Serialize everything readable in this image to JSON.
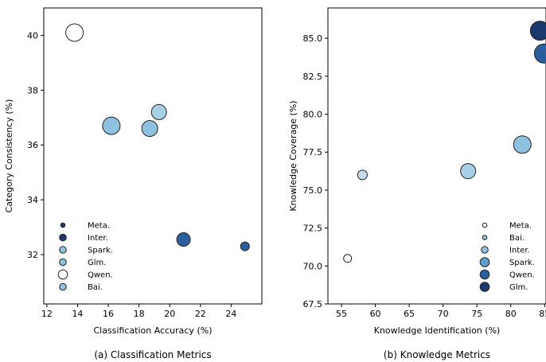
{
  "colors": {
    "dark": "#1a3a6e",
    "mid": "#2c5f9e",
    "light": "#8ec0e0",
    "pale": "#c4dcec",
    "white": "#ffffff"
  },
  "chart_data": [
    {
      "type": "scatter",
      "caption": "(a) Classification Metrics",
      "xlabel": "Classification Accuracy (%)",
      "ylabel": "Category Consistency (%)",
      "xlim": [
        11.8,
        26.0
      ],
      "ylim": [
        30.2,
        41.0
      ],
      "xticks": [
        12,
        14,
        16,
        18,
        20,
        22,
        24
      ],
      "yticks": [
        32,
        34,
        36,
        38,
        40
      ],
      "grid": false,
      "legend_position": "lower-left",
      "legend": [
        {
          "name": "Meta.",
          "color": "#1a3a6e",
          "size": 1
        },
        {
          "name": "Inter.",
          "color": "#1a3a6e",
          "size": 2
        },
        {
          "name": "Spark.",
          "color": "#8ec0e0",
          "size": 2
        },
        {
          "name": "Glm.",
          "color": "#8ec0e0",
          "size": 2
        },
        {
          "name": "Qwen.",
          "color": "#ffffff",
          "size": 3
        },
        {
          "name": "Bai.",
          "color": "#8ec0e0",
          "size": 2
        }
      ],
      "points": [
        {
          "x": 13.8,
          "y": 40.1,
          "size": 11,
          "color": "#ffffff"
        },
        {
          "x": 16.2,
          "y": 36.7,
          "size": 11,
          "color": "#8ec0e0"
        },
        {
          "x": 18.7,
          "y": 36.6,
          "size": 10,
          "color": "#8ec0e0"
        },
        {
          "x": 19.3,
          "y": 37.2,
          "size": 9.5,
          "color": "#a8d0e6"
        },
        {
          "x": 20.9,
          "y": 32.55,
          "size": 8.5,
          "color": "#2c5f9e"
        },
        {
          "x": 24.9,
          "y": 32.3,
          "size": 5.5,
          "color": "#2c5f9e"
        }
      ]
    },
    {
      "type": "scatter",
      "caption": "(b) Knowledge Metrics",
      "xlabel": "Knowledge Identification (%)",
      "ylabel": "Knowledge Coverage (%)",
      "xlim": [
        53.0,
        85.2
      ],
      "ylim": [
        67.5,
        87.0
      ],
      "xticks": [
        55,
        60,
        65,
        70,
        75,
        80,
        85
      ],
      "yticks": [
        67.5,
        70.0,
        72.5,
        75.0,
        77.5,
        80.0,
        82.5,
        85.0
      ],
      "grid": false,
      "legend_position": "lower-right",
      "legend": [
        {
          "name": "Meta.",
          "color": "#ffffff",
          "size": 1
        },
        {
          "name": "Bai.",
          "color": "#8ec0e0",
          "size": 1
        },
        {
          "name": "Inter.",
          "color": "#8ec0e0",
          "size": 2
        },
        {
          "name": "Spark.",
          "color": "#5d9ccb",
          "size": 3
        },
        {
          "name": "Qwen.",
          "color": "#2c5f9e",
          "size": 3
        },
        {
          "name": "Glm.",
          "color": "#1a3a6e",
          "size": 3
        }
      ],
      "points": [
        {
          "x": 55.9,
          "y": 70.5,
          "size": 5,
          "color": "#ffffff"
        },
        {
          "x": 58.1,
          "y": 76.0,
          "size": 6,
          "color": "#c4dcec"
        },
        {
          "x": 73.7,
          "y": 76.25,
          "size": 9.5,
          "color": "#a8d0e6"
        },
        {
          "x": 81.7,
          "y": 78.0,
          "size": 11,
          "color": "#8ec0e0"
        },
        {
          "x": 84.3,
          "y": 85.5,
          "size": 12,
          "color": "#1a3a6e"
        },
        {
          "x": 84.9,
          "y": 84.0,
          "size": 12,
          "color": "#2c5f9e"
        }
      ]
    }
  ]
}
